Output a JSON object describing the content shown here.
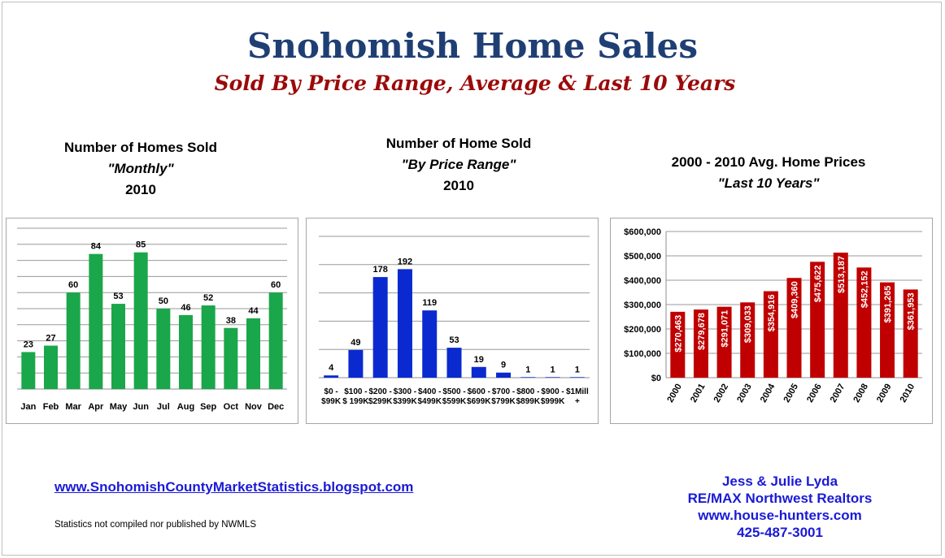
{
  "header": {
    "title": "Snohomish Home Sales",
    "subtitle": "Sold By Price Range, Average & Last 10 Years"
  },
  "colors": {
    "monthly": "#1aa64a",
    "price_range": "#0a2ad0",
    "avg_price": "#c00000",
    "title": "#1f3f74",
    "subtitle": "#9b0a0a",
    "link": "#1a1ad6"
  },
  "chart_headings": [
    {
      "line1": "Number of Homes Sold",
      "line2": "\"Monthly\"",
      "line3": "2010"
    },
    {
      "line1": "Number of Home Sold",
      "line2": "\"By Price Range\"",
      "line3": "2010"
    },
    {
      "line1": "2000 - 2010 Avg. Home Prices",
      "line2": "\"Last 10 Years\""
    }
  ],
  "chart_data": [
    {
      "type": "bar",
      "title": "Number of Homes Sold \"Monthly\" 2010",
      "categories": [
        "Jan",
        "Feb",
        "Mar",
        "Apr",
        "May",
        "Jun",
        "Jul",
        "Aug",
        "Sep",
        "Oct",
        "Nov",
        "Dec"
      ],
      "values": [
        23,
        27,
        60,
        84,
        53,
        85,
        50,
        46,
        52,
        38,
        44,
        60
      ],
      "ylim": [
        0,
        100
      ],
      "grid": true,
      "data_labels": true
    },
    {
      "type": "bar",
      "title": "Number of Home Sold \"By Price Range\" 2010",
      "categories": [
        [
          "$0 -",
          "$99K"
        ],
        [
          "$100 -",
          "$ 199K"
        ],
        [
          "$200 -",
          "$299K"
        ],
        [
          "$300 -",
          "$399K"
        ],
        [
          "$400 -",
          "$499K"
        ],
        [
          "$500 -",
          "$599K"
        ],
        [
          "$600 -",
          "$699K"
        ],
        [
          "$700 -",
          "$799K"
        ],
        [
          "$800 -",
          "$899K"
        ],
        [
          "$900 -",
          "$999K"
        ],
        [
          "$1Mill",
          "+"
        ]
      ],
      "values": [
        4,
        49,
        178,
        192,
        119,
        53,
        19,
        9,
        1,
        1,
        1
      ],
      "ylim": [
        0,
        250
      ],
      "grid": true,
      "data_labels": true
    },
    {
      "type": "bar",
      "title": "2000 - 2010 Avg. Home Prices \"Last 10 Years\"",
      "categories": [
        "2000",
        "2001",
        "2002",
        "2003",
        "2004",
        "2005",
        "2006",
        "2007",
        "2008",
        "2009",
        "2010"
      ],
      "values": [
        270463,
        279678,
        291071,
        309033,
        354916,
        409360,
        475622,
        513187,
        452152,
        391265,
        361953
      ],
      "value_labels": [
        "$270,463",
        "$279,678",
        "$291,071",
        "$309,033",
        "$354,916",
        "$409,360",
        "$475,622",
        "$513,187",
        "$452,152",
        "$391,265",
        "$361,953"
      ],
      "yticks": [
        "$0",
        "$100,000",
        "$200,000",
        "$300,000",
        "$400,000",
        "$500,000",
        "$600,000"
      ],
      "ylim": [
        0,
        600000
      ],
      "grid": true,
      "data_labels": true
    }
  ],
  "footer": {
    "link": "www.SnohomishCountyMarketStatistics.blogspot.com",
    "note": "Statistics not compiled nor published by NWMLS",
    "contact": [
      "Jess & Julie Lyda",
      "RE/MAX Northwest Realtors",
      "www.house-hunters.com",
      "425-487-3001"
    ]
  }
}
